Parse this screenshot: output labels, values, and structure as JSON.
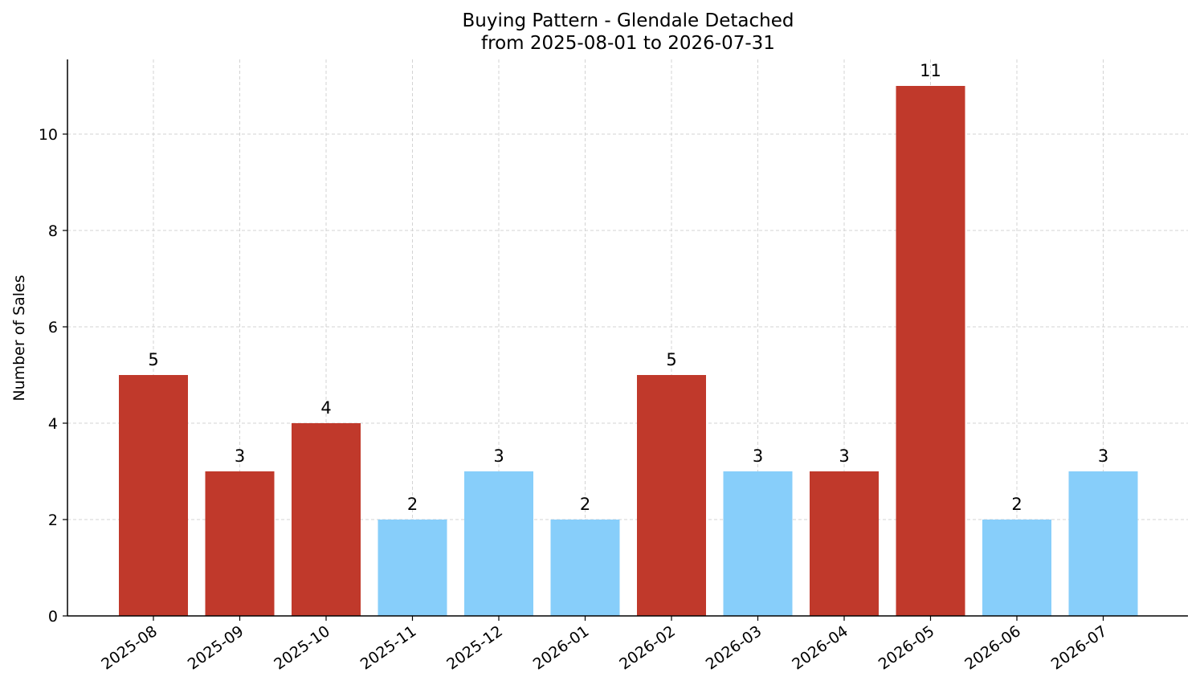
{
  "chart_data": {
    "type": "bar",
    "title": "Buying Pattern - Glendale Detached",
    "subtitle": "from 2025-08-01 to 2026-07-31",
    "xlabel": "",
    "ylabel": "Number of Sales",
    "categories": [
      "2025-08",
      "2025-09",
      "2025-10",
      "2025-11",
      "2025-12",
      "2026-01",
      "2026-02",
      "2026-03",
      "2026-04",
      "2026-05",
      "2026-06",
      "2026-07"
    ],
    "values": [
      5,
      3,
      4,
      2,
      3,
      2,
      5,
      3,
      3,
      11,
      2,
      3
    ],
    "bar_colors": [
      "#c0392b",
      "#c0392b",
      "#c0392b",
      "#87cefa",
      "#87cefa",
      "#87cefa",
      "#c0392b",
      "#87cefa",
      "#c0392b",
      "#c0392b",
      "#87cefa",
      "#87cefa"
    ],
    "ylim": [
      0,
      11.55
    ],
    "yticks": [
      0,
      2,
      4,
      6,
      8,
      10
    ],
    "grid": true,
    "legend": "none"
  }
}
